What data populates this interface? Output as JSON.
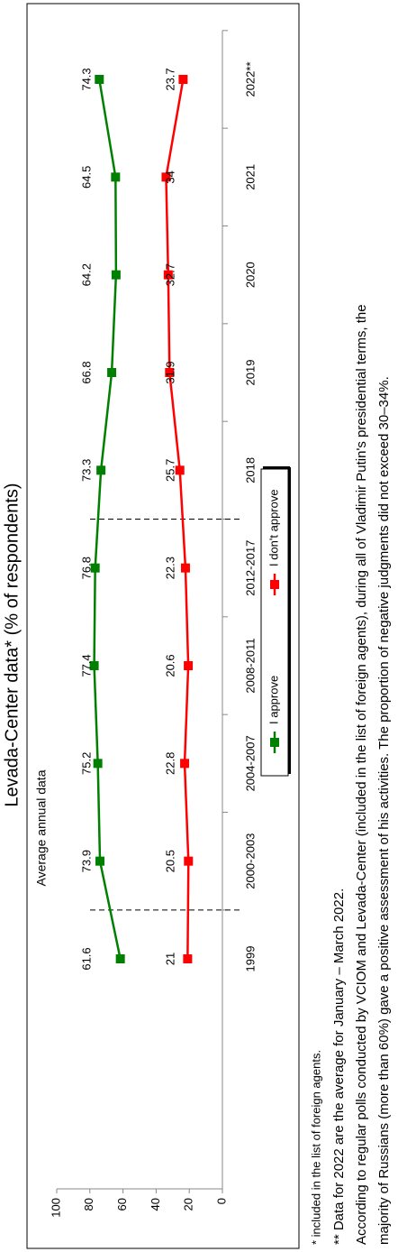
{
  "chart_data": {
    "type": "line",
    "title": "Levada-Center data* (% of respondents)",
    "annotation": "Average annual data",
    "categories": [
      "1999",
      "2000-2003",
      "2004-2007",
      "2008-2011",
      "2012-2017",
      "2018",
      "2019",
      "2020",
      "2021",
      "2022**"
    ],
    "series": [
      {
        "name": "I approve",
        "color": "#008000",
        "values": [
          61.6,
          73.9,
          75.2,
          77.4,
          76.8,
          73.3,
          66.8,
          64.2,
          64.5,
          74.3
        ]
      },
      {
        "name": "I don't approve",
        "color": "#ff0000",
        "values": [
          21,
          20.5,
          22.8,
          20.6,
          22.3,
          25.7,
          31.9,
          32.7,
          34,
          23.7
        ]
      }
    ],
    "ylim": [
      0,
      100
    ],
    "yticks": [
      0,
      20,
      40,
      60,
      80,
      100
    ],
    "grid": false,
    "legend": "bottom"
  },
  "notes": [
    "* included in the list of foreign agents.",
    "** Data for 2022 are the average for January – March 2022.",
    "According to regular polls conducted by VCIOM and Levada-Center (included in the list of foreign agents), during all of Vladimir Putin's presidential terms, the",
    "majority of Russians (more than 60%) gave a positive assessment of his activities. The proportion of negative judgments did not exceed 30–34%."
  ]
}
